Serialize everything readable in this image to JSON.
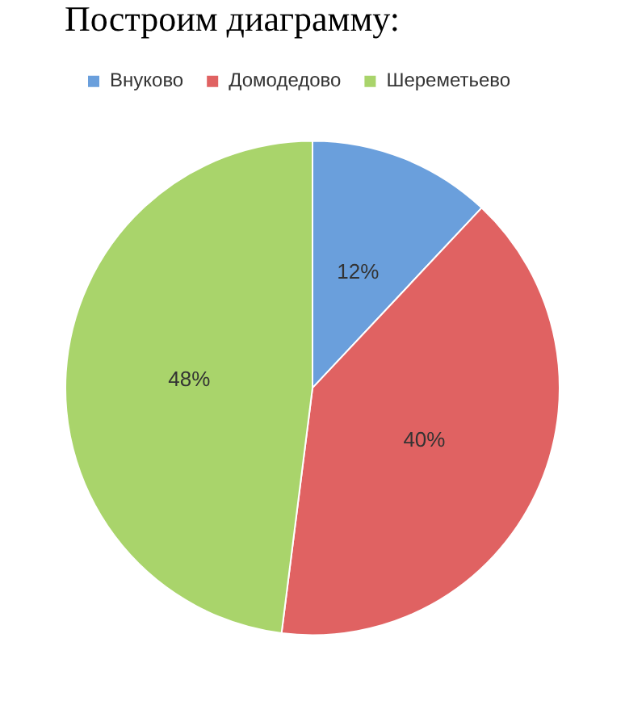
{
  "chart_data": {
    "type": "pie",
    "title": "Построим диаграмму:",
    "categories": [
      "Внуково",
      "Домодедово",
      "Шереметьево"
    ],
    "values": [
      12,
      40,
      48
    ],
    "colors": [
      "#6a9fdc",
      "#e06262",
      "#a9d46b"
    ],
    "value_labels": [
      "12%",
      "40%",
      "48%"
    ],
    "legend": "top"
  }
}
